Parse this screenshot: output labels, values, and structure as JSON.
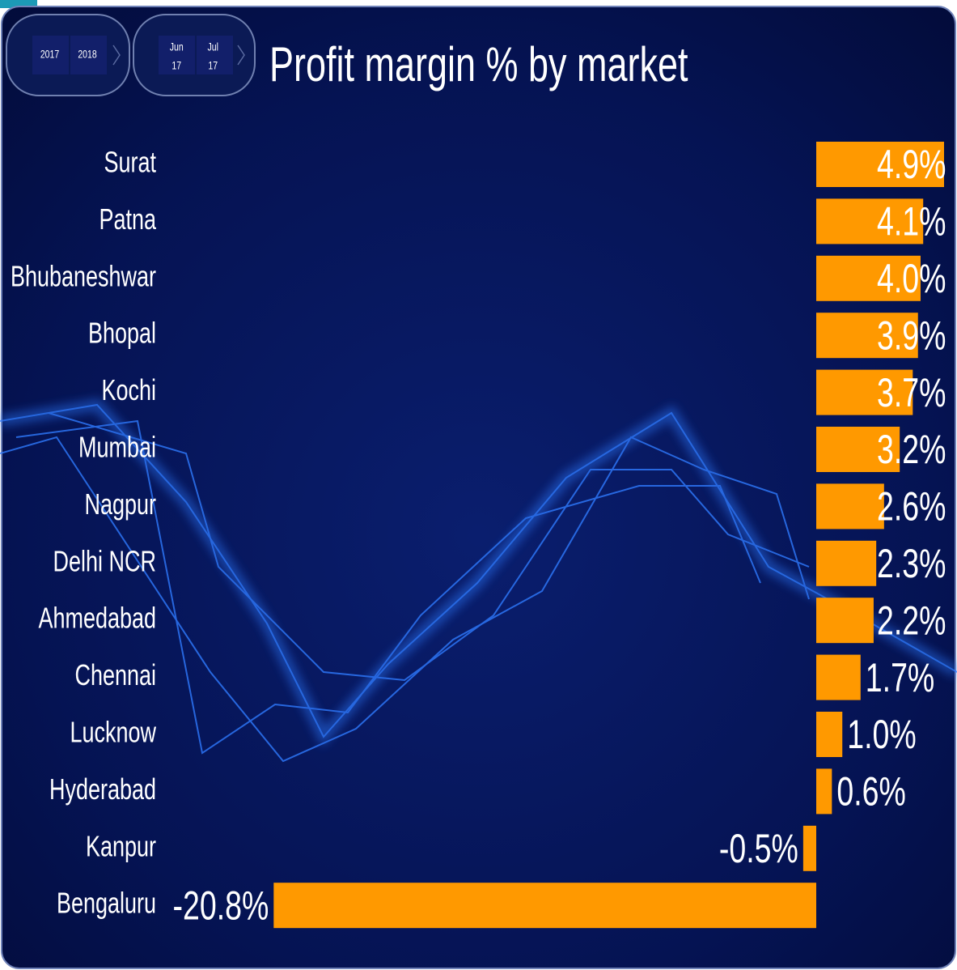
{
  "slicers": {
    "years": [
      "2017",
      "2018"
    ],
    "months": [
      {
        "month": "Jun",
        "year": "17"
      },
      {
        "month": "Jul",
        "year": "17"
      }
    ]
  },
  "chart_data": {
    "type": "bar",
    "orientation": "horizontal",
    "title": "Profit margin % by market",
    "categories": [
      "Surat",
      "Patna",
      "Bhubaneshwar",
      "Bhopal",
      "Kochi",
      "Mumbai",
      "Nagpur",
      "Delhi NCR",
      "Ahmedabad",
      "Chennai",
      "Lucknow",
      "Hyderabad",
      "Kanpur",
      "Bengaluru"
    ],
    "values": [
      4.9,
      4.1,
      4.0,
      3.9,
      3.7,
      3.2,
      2.6,
      2.3,
      2.2,
      1.7,
      1.0,
      0.6,
      -0.5,
      -20.8
    ],
    "value_labels": [
      "4.9%",
      "4.1%",
      "4.0%",
      "3.9%",
      "3.7%",
      "3.2%",
      "2.6%",
      "2.3%",
      "2.2%",
      "1.7%",
      "1.0%",
      "0.6%",
      "-0.5%",
      "-20.8%"
    ],
    "color": "#ff9900"
  }
}
